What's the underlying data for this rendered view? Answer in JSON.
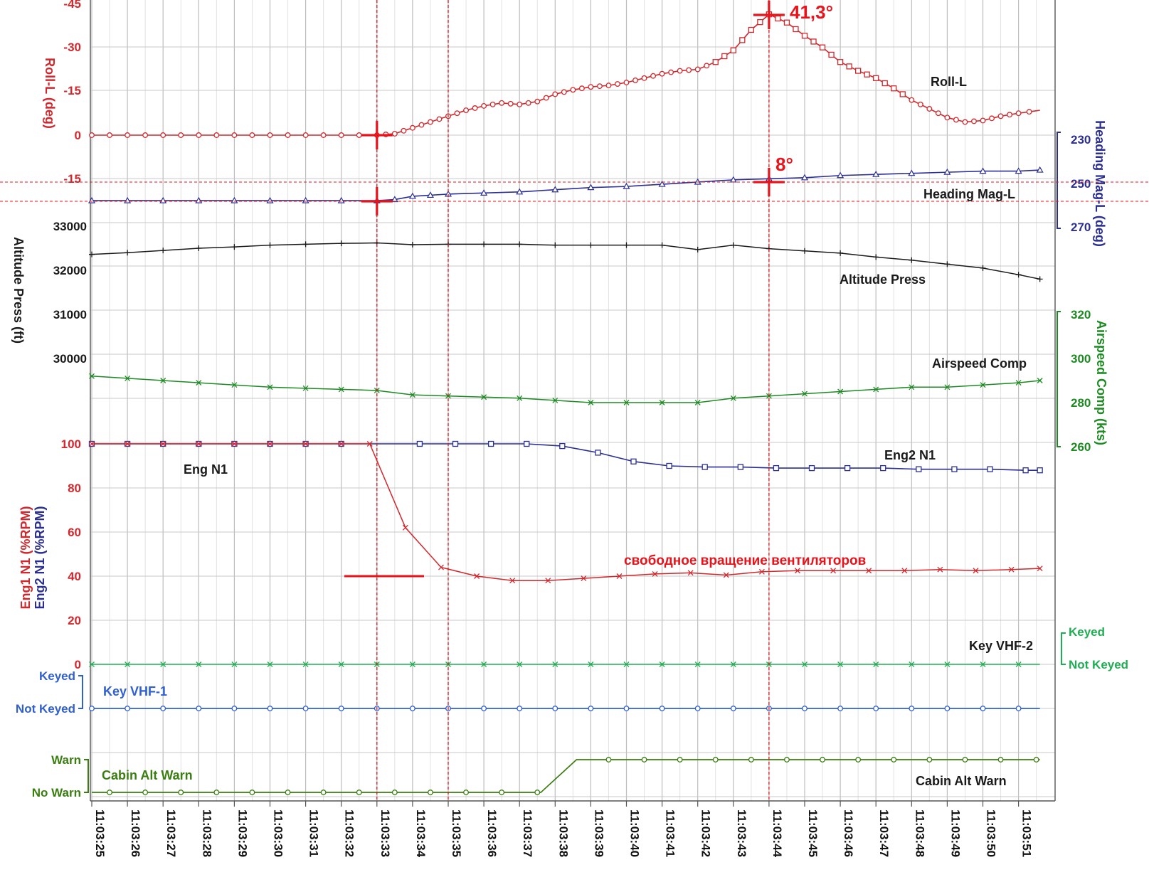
{
  "chart_data": {
    "type": "line",
    "colors": {
      "roll": "#d2282d",
      "heading": "#2b2f92",
      "altitude": "#1a1a1a",
      "airspeed": "#1d8a22",
      "eng1": "#d2282d",
      "eng2": "#2b2f92",
      "vhf2": "#1fae52",
      "vhf1": "#2f5fd0",
      "cabin": "#3a7d10",
      "marker": "#e8141b",
      "grid": "#c8c8c8"
    },
    "time_labels": [
      "11:03:25",
      "11:03:26",
      "11:03:27",
      "11:03:28",
      "11:03:29",
      "11:03:30",
      "11:03:31",
      "11:03:32",
      "11:03:33",
      "11:03:34",
      "11:03:35",
      "11:03:36",
      "11:03:37",
      "11:03:38",
      "11:03:39",
      "11:03:40",
      "11:03:41",
      "11:03:42",
      "11:03:43",
      "11:03:44",
      "11:03:45",
      "11:03:46",
      "11:03:47",
      "11:03:48",
      "11:03:49",
      "11:03:50",
      "11:03:51"
    ],
    "series": [
      {
        "key": "roll",
        "name": "Roll-L",
        "axis_title": "Roll-L (deg)",
        "ticks": [
          "-45",
          "-30",
          "-15",
          "0",
          "-15"
        ],
        "x": [
          25,
          26,
          27,
          28,
          29,
          30,
          31,
          32,
          33,
          33.5,
          34,
          34.5,
          35,
          35.5,
          36,
          36.5,
          37,
          37.5,
          38,
          38.5,
          39,
          39.5,
          40,
          40.5,
          41,
          41.5,
          42,
          42.5,
          43,
          43.5,
          44,
          44.5,
          45,
          45.5,
          46,
          46.5,
          47,
          47.5,
          48,
          48.5,
          49,
          49.5,
          50,
          50.5,
          51,
          51.6
        ],
        "values": [
          0,
          0,
          0,
          0,
          0,
          0,
          0,
          0,
          0,
          0.5,
          2.5,
          4.5,
          6.5,
          8.5,
          10,
          11,
          10.5,
          11.5,
          14,
          15.5,
          16.5,
          17,
          18,
          19.5,
          21,
          22,
          22.5,
          25,
          29,
          36,
          41.3,
          38.5,
          34,
          30,
          25,
          22,
          19.5,
          16,
          12,
          9,
          6,
          4.5,
          5,
          6.5,
          7.5,
          8.5
        ]
      },
      {
        "key": "heading",
        "name": "Heading Mag-L",
        "axis_title": "Heading Mag-L (deg)",
        "ticks": [
          "230",
          "250",
          "270"
        ],
        "x": [
          25,
          26,
          27,
          28,
          29,
          30,
          31,
          32,
          33,
          33.5,
          34,
          34.5,
          35,
          36,
          37,
          38,
          39,
          40,
          41,
          42,
          43,
          44,
          45,
          46,
          47,
          48,
          49,
          50,
          51,
          51.6
        ],
        "values": [
          258,
          258,
          258,
          258,
          258,
          258,
          258,
          258,
          258,
          257.5,
          256,
          255.5,
          255,
          254.5,
          254,
          253,
          252,
          251.5,
          250.5,
          249.5,
          248.5,
          248,
          247.5,
          246.5,
          246,
          245.5,
          245,
          244.5,
          244.5,
          244
        ]
      },
      {
        "key": "altitude",
        "name": "Altitude Press",
        "axis_title": "Altitude Press (ft)",
        "ticks": [
          "33000",
          "32000",
          "31000",
          "30000"
        ],
        "x": [
          25,
          26,
          27,
          28,
          29,
          30,
          31,
          32,
          33,
          34,
          35,
          36,
          37,
          38,
          39,
          40,
          41,
          42,
          43,
          44,
          45,
          46,
          47,
          48,
          49,
          50,
          51,
          51.6
        ],
        "values": [
          32360,
          32400,
          32450,
          32500,
          32530,
          32570,
          32590,
          32610,
          32620,
          32580,
          32590,
          32590,
          32590,
          32570,
          32570,
          32570,
          32570,
          32470,
          32570,
          32490,
          32440,
          32390,
          32300,
          32230,
          32140,
          32050,
          31900,
          31800
        ]
      },
      {
        "key": "airspeed",
        "name": "Airspeed Comp",
        "axis_title": "Airspeed Comp (kts)",
        "ticks": [
          "320",
          "300",
          "280",
          "260"
        ],
        "x": [
          25,
          26,
          27,
          28,
          29,
          30,
          31,
          32,
          33,
          34,
          35,
          36,
          37,
          38,
          39,
          40,
          41,
          42,
          43,
          44,
          45,
          46,
          47,
          48,
          49,
          50,
          51,
          51.6
        ],
        "values": [
          292,
          291,
          290,
          289,
          288,
          287,
          286.5,
          286,
          285.5,
          283.5,
          283,
          282.5,
          282,
          281,
          280,
          280,
          280,
          280,
          282,
          283,
          284,
          285,
          286,
          287,
          287,
          288,
          289,
          290
        ]
      },
      {
        "key": "eng1",
        "name": "Eng N1",
        "axis_title": "Eng1 N1 (%RPM)",
        "ticks": [
          "100",
          "80",
          "60",
          "40",
          "20",
          "0"
        ],
        "x": [
          25,
          26,
          27,
          28,
          29,
          30,
          31,
          32,
          32.8,
          33.8,
          34.8,
          35.8,
          36.8,
          37.8,
          38.8,
          39.8,
          40.8,
          41.8,
          42.8,
          43.8,
          44.8,
          45.8,
          46.8,
          47.8,
          48.8,
          49.8,
          50.8,
          51.6
        ],
        "values": [
          100,
          100,
          100,
          100,
          100,
          100,
          100,
          100,
          100,
          62,
          44,
          40,
          38,
          38,
          39,
          40,
          41,
          41.5,
          40.5,
          42,
          42.5,
          42.5,
          42.5,
          42.5,
          43,
          42.5,
          43,
          43.5
        ]
      },
      {
        "key": "eng2",
        "name": "Eng2 N1",
        "axis_title": "Eng2 N1 (%RPM)",
        "x": [
          25,
          26,
          27,
          28,
          29,
          30,
          31,
          32,
          34.2,
          35.2,
          36.2,
          37.2,
          38.2,
          39.2,
          40.2,
          41.2,
          42.2,
          43.2,
          44.2,
          45.2,
          46.2,
          47.2,
          48.2,
          49.2,
          50.2,
          51.2,
          51.6
        ],
        "values": [
          100,
          100,
          100,
          100,
          100,
          100,
          100,
          100,
          100,
          100,
          100,
          100,
          99,
          96,
          92,
          90,
          89.5,
          89.5,
          89,
          89,
          89,
          89,
          88.5,
          88.5,
          88.5,
          88,
          88
        ]
      },
      {
        "key": "vhf2",
        "name": "Key VHF-2",
        "ticks": [
          "Keyed",
          "Not Keyed"
        ],
        "value": "Not Keyed"
      },
      {
        "key": "vhf1",
        "name": "Key VHF-1",
        "ticks": [
          "Keyed",
          "Not Keyed"
        ],
        "value": "Not Keyed"
      },
      {
        "key": "cabin",
        "name": "Cabin Alt Warn",
        "ticks": [
          "Warn",
          "No Warn"
        ],
        "x": [
          25,
          37.6,
          38.6,
          51.6
        ],
        "values": [
          "No Warn",
          "No Warn",
          "Warn",
          "Warn"
        ]
      }
    ],
    "annotations": {
      "roll_peak": "41,3°",
      "heading_change": "8°",
      "windmilling": "свободное вращение вентиляторов"
    },
    "markers_time": [
      "11:03:33",
      "11:03:35",
      "11:03:44"
    ],
    "grid": true
  }
}
